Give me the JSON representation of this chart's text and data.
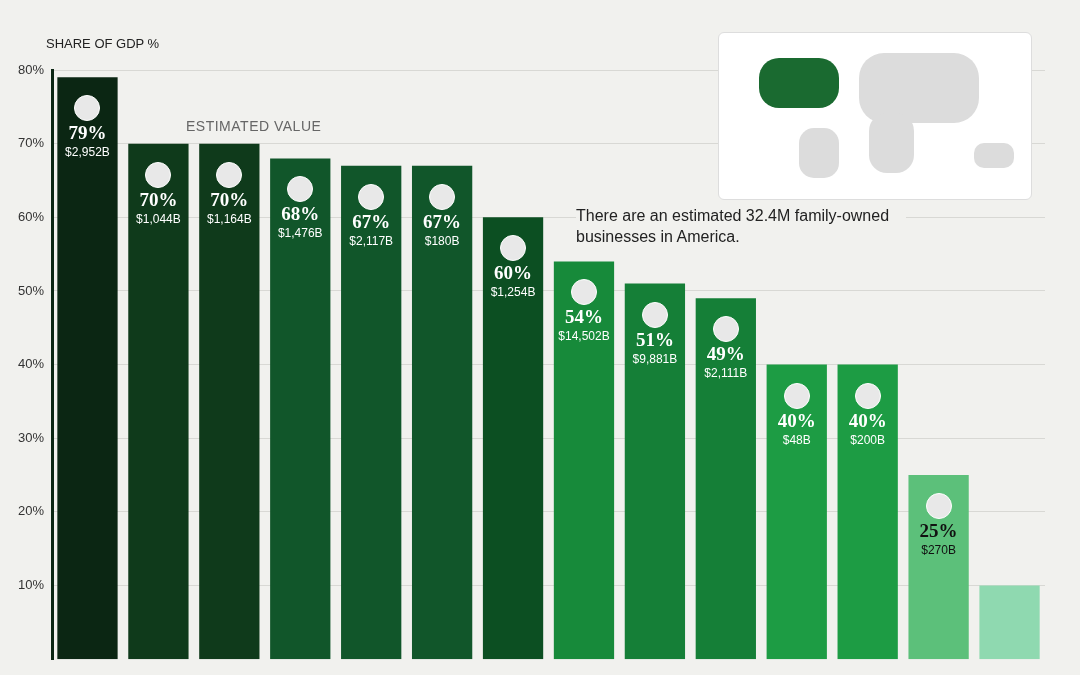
{
  "chart_data": {
    "type": "bar",
    "ylabel": "SHARE OF GDP %",
    "categories": [
      null,
      null,
      null,
      null,
      null,
      null,
      null,
      null,
      null,
      null,
      null,
      null,
      null,
      null
    ],
    "values": [
      79,
      70,
      70,
      68,
      67,
      67,
      60,
      54,
      51,
      49,
      40,
      40,
      25,
      10
    ],
    "colors": [
      "#0b2613",
      "#0f3a1b",
      "#0f3a1b",
      "#11562a",
      "#11562a",
      "#11562a",
      "#0c4f22",
      "#178a3a",
      "#157f37",
      "#157f37",
      "#1d9c44",
      "#1d9c44",
      "#5cc07a",
      "#8fd9b0"
    ],
    "value_labels": [
      "79%\n$2,952B",
      "70%\n$1,044B",
      "70%\n$1,164B",
      "68%\n$1,476B",
      "67%\n$2,117B",
      "67%\n$180B",
      "60%\n$1,254B",
      "54%\n$14,502B",
      "51%\n$9,881B",
      "49%\n$2,111B",
      "40%\n$48B",
      "40%\n$200B",
      "25%\n$270B",
      null
    ],
    "ylim": [
      0,
      80
    ],
    "yticks": [
      {
        "value": 10,
        "label": "10%"
      },
      {
        "value": 20,
        "label": "20%"
      },
      {
        "value": 30,
        "label": "30%"
      },
      {
        "value": 40,
        "label": "40%"
      },
      {
        "value": 50,
        "label": "50%"
      },
      {
        "value": 60,
        "label": "60%"
      },
      {
        "value": 70,
        "label": "70%"
      },
      {
        "value": 80,
        "label": "80%"
      }
    ],
    "grid": "y",
    "annotations": [
      "ESTIMATED VALUE",
      "There are an estimated 32.4M family-owned businesses in America."
    ]
  }
}
